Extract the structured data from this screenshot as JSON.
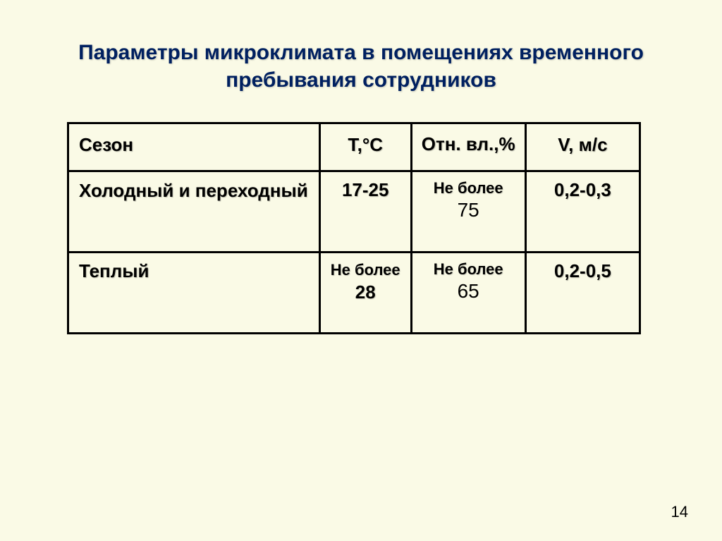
{
  "slide": {
    "title": "Параметры микроклимата в помещениях временного пребывания сотрудников",
    "page_number": "14",
    "background_color": "#fafae6",
    "title_color": "#002060",
    "border_color": "#000000"
  },
  "table": {
    "type": "table",
    "columns": [
      {
        "label": "Сезон",
        "width_pct": 44,
        "align": "left"
      },
      {
        "label": "Т,°С",
        "width_pct": 16,
        "align": "center"
      },
      {
        "label": "Отн. вл.,%",
        "width_pct": 20,
        "align": "center"
      },
      {
        "label": "V, м/с",
        "width_pct": 20,
        "align": "center"
      }
    ],
    "rows": [
      {
        "season": "Холодный и переходный",
        "temp": "17-25",
        "humidity_prefix": "Не более",
        "humidity_value": "75",
        "velocity": "0,2-0,3"
      },
      {
        "season": "Теплый",
        "temp_prefix": "Не более",
        "temp_value": "28",
        "humidity_prefix": "Не более",
        "humidity_value": "65",
        "velocity": "0,2-0,5"
      }
    ],
    "header_fontsize": 26,
    "cell_bold_fontsize": 26,
    "cell_small_fontsize": 22,
    "stack_big_fontsize": 28
  }
}
